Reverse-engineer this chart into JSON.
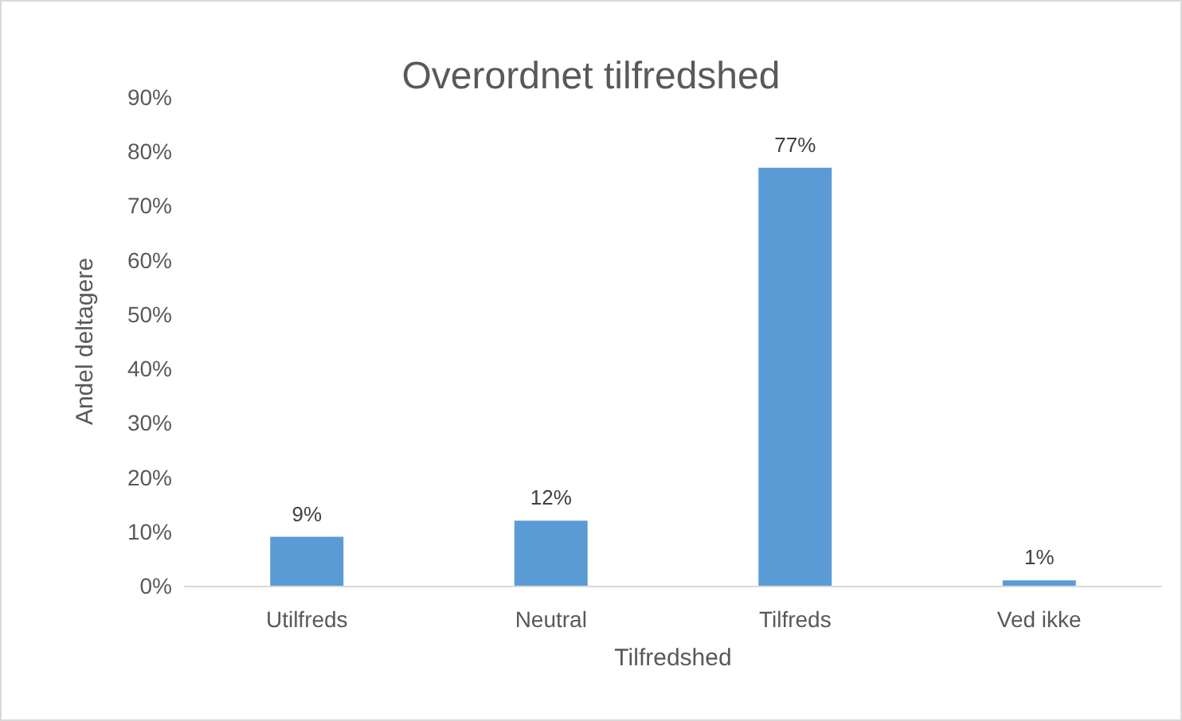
{
  "chart_data": {
    "type": "bar",
    "title": "Overordnet tilfredshed",
    "xlabel": "Tilfredshed",
    "ylabel": "Andel deltagere",
    "categories": [
      "Utilfreds",
      "Neutral",
      "Tilfreds",
      "Ved ikke"
    ],
    "values": [
      9,
      12,
      77,
      1
    ],
    "color": "#5b9bd5",
    "value_labels": [
      "9%",
      "12%",
      "77%",
      "1%"
    ],
    "ylim": [
      0,
      90
    ],
    "yticks": [
      {
        "value": 0,
        "label": "0%"
      },
      {
        "value": 10,
        "label": "10%"
      },
      {
        "value": 20,
        "label": "20%"
      },
      {
        "value": 30,
        "label": "30%"
      },
      {
        "value": 40,
        "label": "40%"
      },
      {
        "value": 50,
        "label": "50%"
      },
      {
        "value": 60,
        "label": "60%"
      },
      {
        "value": 70,
        "label": "70%"
      },
      {
        "value": 80,
        "label": "80%"
      },
      {
        "value": 90,
        "label": "90%"
      }
    ],
    "grid": false
  }
}
